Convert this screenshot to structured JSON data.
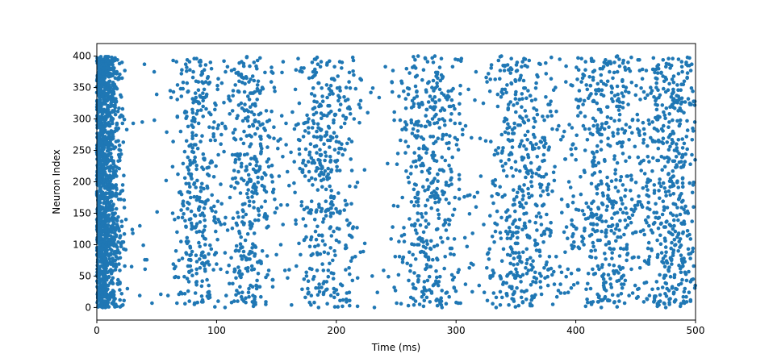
{
  "chart_data": {
    "type": "scatter",
    "title": "",
    "xlabel": "Time (ms)",
    "ylabel": "Neuron Index",
    "xlim": [
      0,
      500
    ],
    "ylim": [
      -20,
      420
    ],
    "xticks": [
      0,
      100,
      200,
      300,
      400,
      500
    ],
    "yticks": [
      0,
      50,
      100,
      150,
      200,
      250,
      300,
      350,
      400
    ],
    "grid": false,
    "legend": "none",
    "marker": "dot",
    "color": "#1f77b4",
    "neurons": [
      0,
      400
    ],
    "initial_burst": {
      "t_range": [
        0,
        22
      ]
    },
    "bursts": [
      {
        "center": 83,
        "width": 10
      },
      {
        "center": 128,
        "width": 12
      },
      {
        "center": 192,
        "width": 14
      },
      {
        "center": 278,
        "width": 14
      },
      {
        "center": 355,
        "width": 16
      },
      {
        "center": 425,
        "width": 16
      },
      {
        "center": 480,
        "width": 14
      }
    ]
  }
}
